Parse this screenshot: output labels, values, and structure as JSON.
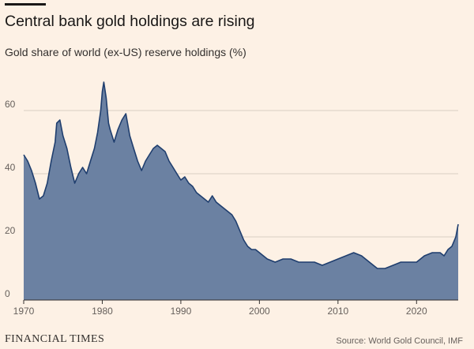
{
  "header": {
    "title": "Central bank gold holdings are rising",
    "subtitle": "Gold share of world (ex-US) reserve holdings (%)"
  },
  "footer": {
    "brand": "FINANCIAL TIMES",
    "source": "Source: World Gold Council, IMF"
  },
  "colors": {
    "area_fill": "#6b81a2",
    "line": "#1f3e6e",
    "grid": "#d9cec4",
    "axis": "#33302e",
    "background": "#fdf1e5"
  },
  "chart_data": {
    "type": "area",
    "title": "Central bank gold holdings are rising",
    "subtitle": "Gold share of world (ex-US) reserve holdings (%)",
    "xlabel": "",
    "ylabel": "",
    "xlim": [
      1970,
      2025.3
    ],
    "ylim": [
      0,
      70
    ],
    "xticks": [
      1970,
      1980,
      1990,
      2000,
      2010,
      2020
    ],
    "yticks": [
      0,
      20,
      40,
      60
    ],
    "grid": true,
    "legend": "none",
    "series": [
      {
        "name": "",
        "x": [
          1970,
          1970.5,
          1971,
          1971.5,
          1972,
          1972.5,
          1973,
          1973.5,
          1974,
          1974.2,
          1974.6,
          1975,
          1975.5,
          1976,
          1976.5,
          1977,
          1977.5,
          1978,
          1978.5,
          1979,
          1979.4,
          1979.8,
          1980,
          1980.2,
          1980.5,
          1980.8,
          1981,
          1981.5,
          1982,
          1982.5,
          1983,
          1983.5,
          1984,
          1984.5,
          1985,
          1985.5,
          1986,
          1986.5,
          1987,
          1987.5,
          1988,
          1988.5,
          1989,
          1989.5,
          1990,
          1990.5,
          1991,
          1991.5,
          1992,
          1992.5,
          1993,
          1993.5,
          1994,
          1994.5,
          1995,
          1995.5,
          1996,
          1996.5,
          1997,
          1997.5,
          1998,
          1998.5,
          1999,
          1999.5,
          2000,
          2001,
          2002,
          2003,
          2004,
          2005,
          2006,
          2007,
          2008,
          2009,
          2010,
          2011,
          2012,
          2013,
          2014,
          2015,
          2016,
          2017,
          2018,
          2019,
          2020,
          2021,
          2022,
          2023,
          2023.5,
          2024,
          2024.5,
          2025,
          2025.3
        ],
        "values": [
          46,
          44,
          41,
          37,
          32,
          33,
          37,
          44,
          50,
          56,
          57,
          52,
          48,
          42,
          37,
          40,
          42,
          40,
          44,
          48,
          53,
          60,
          66,
          69,
          64,
          56,
          54,
          50,
          54,
          57,
          59,
          52,
          48,
          44,
          41,
          44,
          46,
          48,
          49,
          48,
          47,
          44,
          42,
          40,
          38,
          39,
          37,
          36,
          34,
          33,
          32,
          31,
          33,
          31,
          30,
          29,
          28,
          27,
          25,
          22,
          19,
          17,
          16,
          16,
          15,
          13,
          12,
          13,
          13,
          12,
          12,
          12,
          11,
          12,
          13,
          14,
          15,
          14,
          12,
          10,
          10,
          11,
          12,
          12,
          12,
          14,
          15,
          15,
          14,
          16,
          17,
          20,
          24
        ]
      }
    ]
  }
}
